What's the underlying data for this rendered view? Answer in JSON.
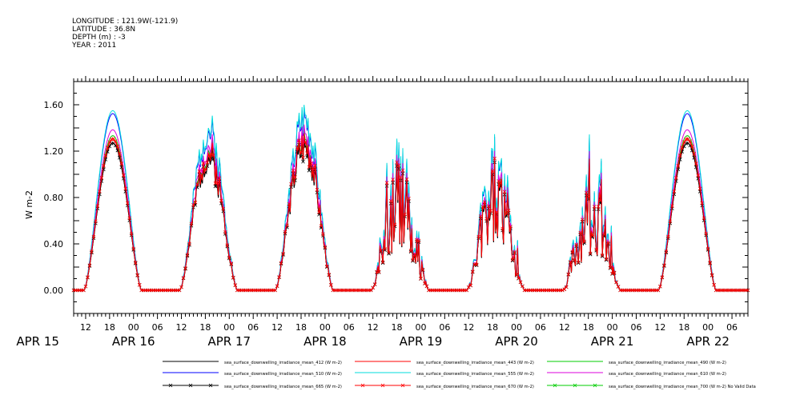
{
  "header": {
    "longitude": "LONGITUDE : 121.9W(-121.9)",
    "latitude": "LATITUDE : 36.8N",
    "depth": "DEPTH (m) : -3",
    "year": "YEAR : 2011"
  },
  "chart_data": {
    "type": "line",
    "title": "",
    "ylabel": "W m-2",
    "ylim": [
      -0.2,
      1.8
    ],
    "yticks": [
      0.0,
      0.4,
      0.8,
      1.2,
      1.6
    ],
    "ytick_labels": [
      "0.00",
      "0.40",
      "0.80",
      "1.20",
      "1.60"
    ],
    "x_range_hours": [
      9,
      178
    ],
    "hour_ticks": [
      12,
      18,
      0,
      6,
      12,
      18,
      0,
      6,
      12,
      18,
      0,
      6,
      12,
      18,
      0,
      6,
      12,
      18,
      0,
      6,
      12,
      18,
      0,
      6,
      12,
      18,
      0,
      6
    ],
    "day_labels": [
      "APR 15",
      "APR 16",
      "APR 17",
      "APR 18",
      "APR 19",
      "APR 20",
      "APR 21",
      "APR 22"
    ],
    "days": [
      {
        "day": "APR 15",
        "peak": 1.27,
        "style": "smooth",
        "seed": 1
      },
      {
        "day": "APR 16",
        "peak": 1.17,
        "style": "noisy",
        "seed": 2
      },
      {
        "day": "APR 17",
        "peak": 1.27,
        "style": "noisy",
        "seed": 3
      },
      {
        "day": "APR 18",
        "peak": 1.0,
        "style": "spiky",
        "seed": 4
      },
      {
        "day": "APR 19",
        "peak": 1.0,
        "style": "spiky",
        "seed": 5
      },
      {
        "day": "APR 20",
        "peak": 0.85,
        "style": "spiky",
        "seed": 6
      },
      {
        "day": "APR 21",
        "peak": 1.27,
        "style": "smooth",
        "seed": 7
      }
    ],
    "series": [
      {
        "name": "sea_surface_downwelling_irradiance_mean_412 (W m-2)",
        "color": "#000000",
        "factor": 1.0,
        "marker": false
      },
      {
        "name": "sea_surface_downwelling_irradiance_mean_443 (W m-2)",
        "color": "#ff0000",
        "factor": 1.02,
        "marker": false
      },
      {
        "name": "sea_surface_downwelling_irradiance_mean_490 (W m-2)",
        "color": "#00cc00",
        "factor": 1.05,
        "marker": false
      },
      {
        "name": "sea_surface_downwelling_irradiance_mean_510 (W m-2)",
        "color": "#0000ff",
        "factor": 1.2,
        "marker": false
      },
      {
        "name": "sea_surface_downwelling_irradiance_mean_555 (W m-2)",
        "color": "#00dddd",
        "factor": 1.22,
        "marker": false
      },
      {
        "name": "sea_surface_downwelling_irradiance_mean_610 (W m-2)",
        "color": "#dd00dd",
        "factor": 1.09,
        "marker": false
      },
      {
        "name": "sea_surface_downwelling_irradiance_mean_665 (W m-2)",
        "color": "#000000",
        "factor": 1.0,
        "marker": true
      },
      {
        "name": "sea_surface_downwelling_irradiance_mean_670 (W m-2)",
        "color": "#ff0000",
        "factor": 1.03,
        "marker": true
      },
      {
        "name": "sea_surface_downwelling_irradiance_mean_700 (W m-2) No Valid Data",
        "color": "#00cc00",
        "factor": 0,
        "marker": true
      }
    ]
  }
}
